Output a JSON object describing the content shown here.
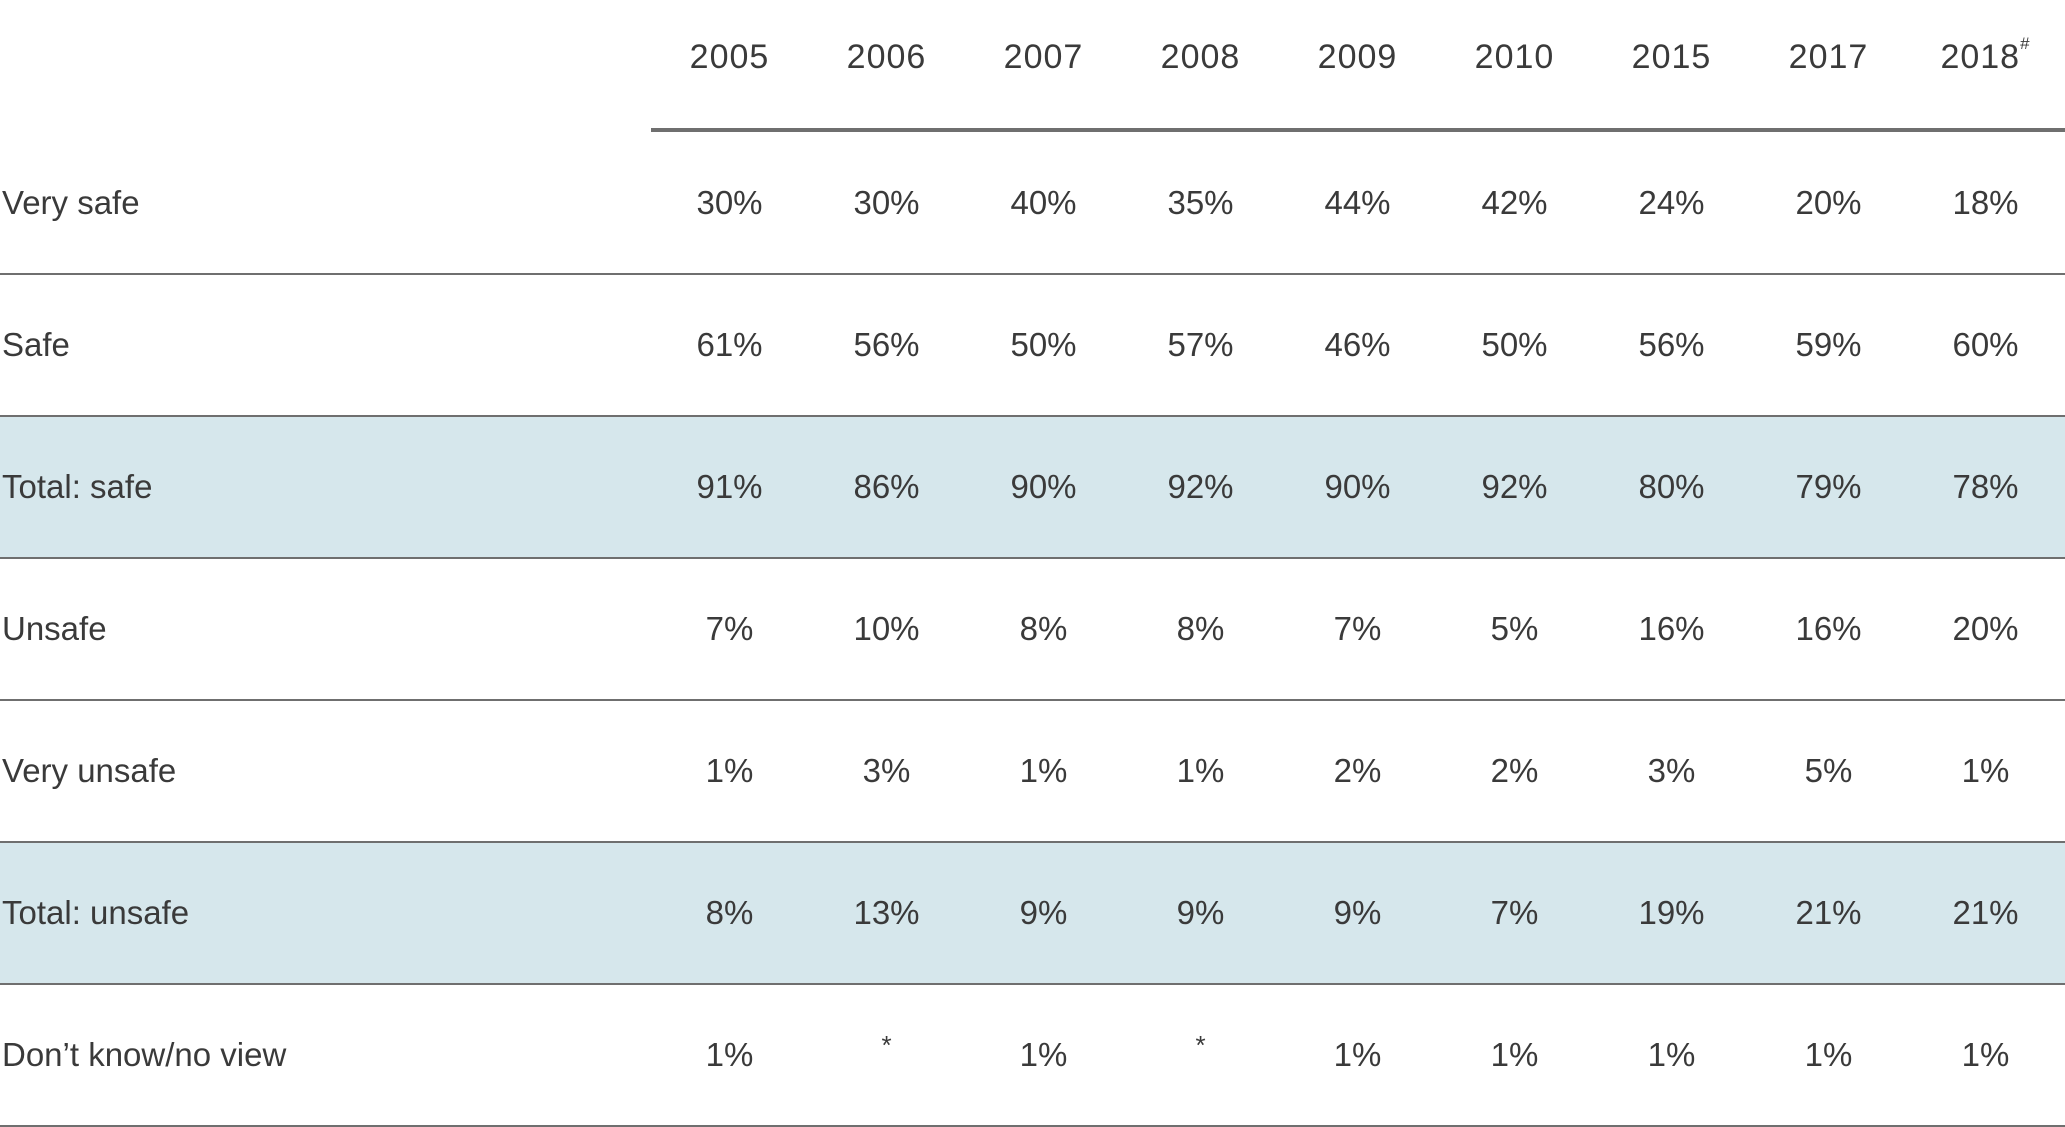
{
  "chart_data": {
    "type": "table",
    "columns": [
      "2005",
      "2006",
      "2007",
      "2008",
      "2009",
      "2010",
      "2015",
      "2017",
      "2018"
    ],
    "column_footnote_marks": [
      "",
      "",
      "",
      "",
      "",
      "",
      "",
      "",
      "#"
    ],
    "rows": [
      {
        "label": "Very safe",
        "total": false,
        "values": [
          "30%",
          "30%",
          "40%",
          "35%",
          "44%",
          "42%",
          "24%",
          "20%",
          "18%"
        ]
      },
      {
        "label": "Safe",
        "total": false,
        "values": [
          "61%",
          "56%",
          "50%",
          "57%",
          "46%",
          "50%",
          "56%",
          "59%",
          "60%"
        ]
      },
      {
        "label": "Total: safe",
        "total": true,
        "values": [
          "91%",
          "86%",
          "90%",
          "92%",
          "90%",
          "92%",
          "80%",
          "79%",
          "78%"
        ]
      },
      {
        "label": "Unsafe",
        "total": false,
        "values": [
          "7%",
          "10%",
          "8%",
          "8%",
          "7%",
          "5%",
          "16%",
          "16%",
          "20%"
        ]
      },
      {
        "label": "Very unsafe",
        "total": false,
        "values": [
          "1%",
          "3%",
          "1%",
          "1%",
          "2%",
          "2%",
          "3%",
          "5%",
          "1%"
        ]
      },
      {
        "label": "Total: unsafe",
        "total": true,
        "values": [
          "8%",
          "13%",
          "9%",
          "9%",
          "9%",
          "7%",
          "19%",
          "21%",
          "21%"
        ]
      },
      {
        "label": "Don’t know/no view",
        "total": false,
        "values": [
          "1%",
          "*",
          "1%",
          "*",
          "1%",
          "1%",
          "1%",
          "1%",
          "1%"
        ]
      }
    ],
    "colors": {
      "total_row_background": "#d6e7ec",
      "rule": "#6f6f6f",
      "text": "#3a3a3a"
    }
  }
}
